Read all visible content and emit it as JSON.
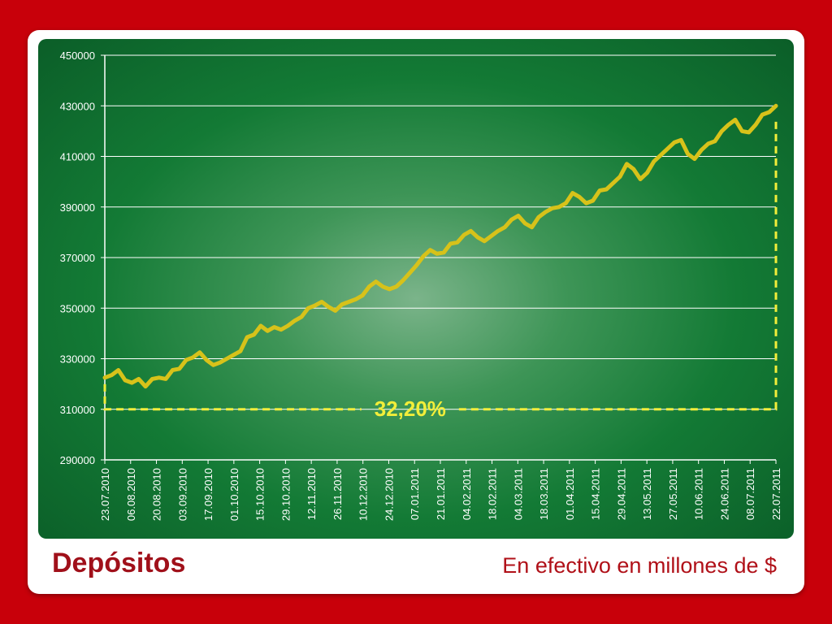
{
  "colors": {
    "background": "#c8000a",
    "card": "#ffffff",
    "panel_center": "#7bb48a",
    "panel_edge": "#0b5e28",
    "line": "#d7c21a",
    "dashed": "#f2ee3a",
    "title": "#a0101a"
  },
  "footer": {
    "title": "Depósitos",
    "subtitle": "En efectivo en millones de $"
  },
  "chart_data": {
    "type": "line",
    "title": "Depósitos",
    "subtitle": "En efectivo en millones de $",
    "xlabel": "",
    "ylabel": "",
    "ylim": [
      290000,
      450000
    ],
    "yticks": [
      290000,
      310000,
      330000,
      350000,
      370000,
      390000,
      410000,
      430000,
      450000
    ],
    "ytick_labels": [
      "290000",
      "310000",
      "330000",
      "350000",
      "370000",
      "390000",
      "410000",
      "430000",
      "450000"
    ],
    "x_tick_labels": [
      "23.07.2010",
      "06.08.2010",
      "20.08.2010",
      "03.09.2010",
      "17.09.2010",
      "01.10.2010",
      "15.10.2010",
      "29.10.2010",
      "12.11.2010",
      "26.11.2010",
      "10.12.2010",
      "24.12.2010",
      "07.01.2011",
      "21.01.2011",
      "04.02.2011",
      "18.02.2011",
      "04.03.2011",
      "18.03.2011",
      "01.04.2011",
      "15.04.2011",
      "29.04.2011",
      "13.05.2011",
      "27.05.2011",
      "10.06.2011",
      "24.06.2011",
      "08.07.2011",
      "22.07.2011"
    ],
    "grid": true,
    "legend": "none",
    "series": [
      {
        "values": [
          322500,
          323500,
          325500,
          321500,
          320500,
          322000,
          319000,
          322000,
          322500,
          322000,
          325500,
          326000,
          329500,
          330500,
          332500,
          329500,
          327500,
          328500,
          330000,
          331500,
          333000,
          338500,
          339500,
          343000,
          341000,
          342500,
          341500,
          343000,
          345000,
          346500,
          350000,
          351000,
          352500,
          350500,
          349000,
          351500,
          352500,
          353500,
          355000,
          358500,
          360500,
          358500,
          357500,
          358500,
          361000,
          364000,
          367000,
          370500,
          373000,
          371500,
          372000,
          375500,
          376000,
          379000,
          380500,
          378000,
          376500,
          378500,
          380500,
          382000,
          385000,
          386500,
          383500,
          382000,
          386000,
          388000,
          389500,
          390000,
          391500,
          395500,
          394000,
          391500,
          392500,
          396500,
          397000,
          399500,
          402000,
          407000,
          405000,
          401000,
          403500,
          408000,
          410500,
          413000,
          415500,
          416500,
          411000,
          409000,
          412500,
          415000,
          416000,
          420000,
          422500,
          424500,
          420000,
          419500,
          422500,
          426500,
          427500,
          430000
        ]
      }
    ],
    "annotations": [
      {
        "text": "32,20%",
        "from_value": 310000,
        "to_value": 430000
      }
    ]
  }
}
